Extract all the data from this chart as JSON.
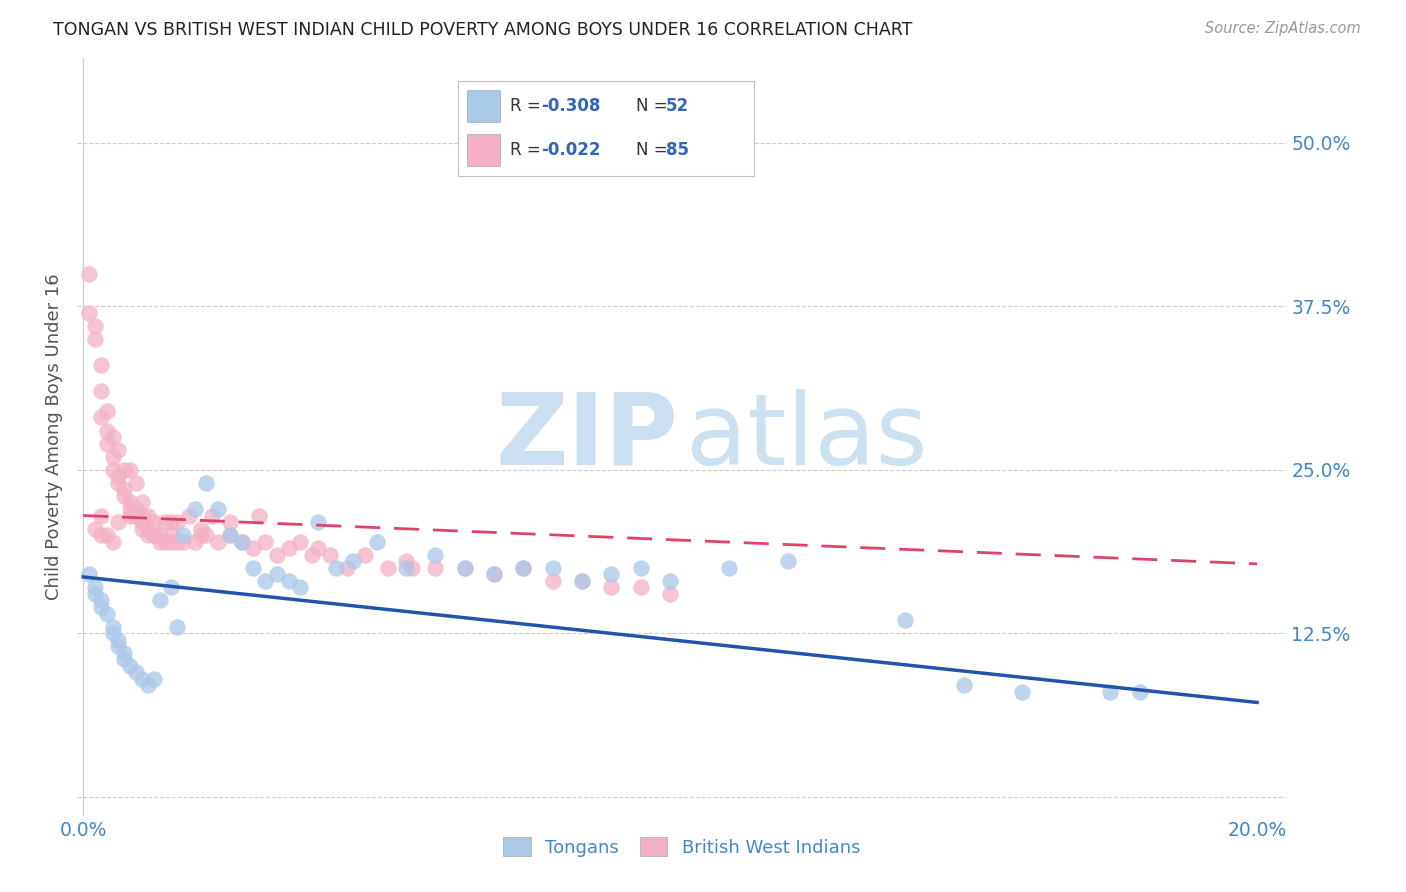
{
  "title": "TONGAN VS BRITISH WEST INDIAN CHILD POVERTY AMONG BOYS UNDER 16 CORRELATION CHART",
  "source": "Source: ZipAtlas.com",
  "ylabel": "Child Poverty Among Boys Under 16",
  "xlim": [
    -0.001,
    0.205
  ],
  "ylim": [
    -0.015,
    0.565
  ],
  "xticks": [
    0.0,
    0.05,
    0.1,
    0.15,
    0.2
  ],
  "xticklabels": [
    "0.0%",
    "",
    "",
    "",
    "20.0%"
  ],
  "yticks_right": [
    0.0,
    0.125,
    0.25,
    0.375,
    0.5
  ],
  "ytick_labels_right": [
    "",
    "12.5%",
    "25.0%",
    "37.5%",
    "50.0%"
  ],
  "tongan_color": "#aac8e8",
  "bwi_color": "#f4b0c4",
  "tongan_line_color": "#2255aa",
  "bwi_line_color": "#dd4466",
  "legend_label_color": "#3366bb",
  "legend_text_dark": "#333333",
  "background_color": "#ffffff",
  "grid_color": "#cccccc",
  "watermark_zip_color": "#ccdff0",
  "watermark_atlas_color": "#cce0f0",
  "label_color": "#4488cc",
  "title_color": "#222222",
  "source_color": "#999999",
  "ylabel_color": "#555555",
  "tongan_line_y0": 0.168,
  "tongan_line_y1": 0.072,
  "bwi_line_y0": 0.215,
  "bwi_line_y1": 0.178,
  "tongan_x": [
    0.001,
    0.002,
    0.002,
    0.003,
    0.003,
    0.004,
    0.005,
    0.005,
    0.006,
    0.006,
    0.007,
    0.007,
    0.008,
    0.009,
    0.01,
    0.011,
    0.012,
    0.013,
    0.015,
    0.016,
    0.017,
    0.019,
    0.021,
    0.023,
    0.025,
    0.027,
    0.029,
    0.031,
    0.033,
    0.035,
    0.037,
    0.04,
    0.043,
    0.046,
    0.05,
    0.055,
    0.06,
    0.065,
    0.07,
    0.075,
    0.08,
    0.085,
    0.09,
    0.095,
    0.1,
    0.11,
    0.12,
    0.14,
    0.15,
    0.16,
    0.175,
    0.18
  ],
  "tongan_y": [
    0.17,
    0.16,
    0.155,
    0.15,
    0.145,
    0.14,
    0.13,
    0.125,
    0.12,
    0.115,
    0.11,
    0.105,
    0.1,
    0.095,
    0.09,
    0.085,
    0.09,
    0.15,
    0.16,
    0.13,
    0.2,
    0.22,
    0.24,
    0.22,
    0.2,
    0.195,
    0.175,
    0.165,
    0.17,
    0.165,
    0.16,
    0.21,
    0.175,
    0.18,
    0.195,
    0.175,
    0.185,
    0.175,
    0.17,
    0.175,
    0.175,
    0.165,
    0.17,
    0.175,
    0.165,
    0.175,
    0.18,
    0.135,
    0.085,
    0.08,
    0.08,
    0.08
  ],
  "bwi_x": [
    0.001,
    0.001,
    0.002,
    0.002,
    0.003,
    0.003,
    0.003,
    0.004,
    0.004,
    0.004,
    0.005,
    0.005,
    0.005,
    0.006,
    0.006,
    0.006,
    0.007,
    0.007,
    0.007,
    0.008,
    0.008,
    0.008,
    0.009,
    0.009,
    0.009,
    0.01,
    0.01,
    0.01,
    0.011,
    0.011,
    0.011,
    0.012,
    0.012,
    0.013,
    0.013,
    0.014,
    0.014,
    0.015,
    0.015,
    0.016,
    0.016,
    0.017,
    0.018,
    0.019,
    0.02,
    0.021,
    0.022,
    0.023,
    0.025,
    0.027,
    0.029,
    0.031,
    0.033,
    0.035,
    0.037,
    0.039,
    0.042,
    0.045,
    0.048,
    0.052,
    0.056,
    0.06,
    0.065,
    0.07,
    0.075,
    0.08,
    0.085,
    0.09,
    0.095,
    0.1,
    0.055,
    0.04,
    0.03,
    0.025,
    0.02,
    0.015,
    0.012,
    0.01,
    0.008,
    0.006,
    0.004,
    0.003,
    0.002,
    0.003,
    0.005
  ],
  "bwi_y": [
    0.4,
    0.37,
    0.35,
    0.36,
    0.33,
    0.31,
    0.29,
    0.295,
    0.28,
    0.27,
    0.275,
    0.26,
    0.25,
    0.265,
    0.245,
    0.24,
    0.25,
    0.235,
    0.23,
    0.25,
    0.225,
    0.22,
    0.24,
    0.22,
    0.215,
    0.225,
    0.21,
    0.215,
    0.2,
    0.215,
    0.205,
    0.2,
    0.21,
    0.195,
    0.2,
    0.195,
    0.21,
    0.2,
    0.195,
    0.195,
    0.21,
    0.195,
    0.215,
    0.195,
    0.2,
    0.2,
    0.215,
    0.195,
    0.2,
    0.195,
    0.19,
    0.195,
    0.185,
    0.19,
    0.195,
    0.185,
    0.185,
    0.175,
    0.185,
    0.175,
    0.175,
    0.175,
    0.175,
    0.17,
    0.175,
    0.165,
    0.165,
    0.16,
    0.16,
    0.155,
    0.18,
    0.19,
    0.215,
    0.21,
    0.205,
    0.21,
    0.2,
    0.205,
    0.215,
    0.21,
    0.2,
    0.215,
    0.205,
    0.2,
    0.195
  ]
}
